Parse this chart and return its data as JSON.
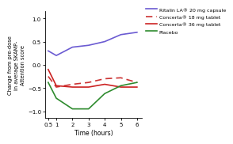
{
  "x": [
    0.5,
    1.0,
    2.0,
    3.0,
    4.0,
    5.0,
    6.0
  ],
  "ritalin": [
    0.3,
    0.2,
    0.38,
    0.42,
    0.5,
    0.65,
    0.7
  ],
  "concerta18": [
    -0.25,
    -0.48,
    -0.42,
    -0.38,
    -0.3,
    -0.28,
    -0.38
  ],
  "concerta36": [
    -0.1,
    -0.45,
    -0.48,
    -0.48,
    -0.42,
    -0.48,
    -0.48
  ],
  "placebo": [
    -0.38,
    -0.72,
    -0.95,
    -0.95,
    -0.62,
    -0.45,
    -0.38
  ],
  "ritalin_color": "#6B5BD2",
  "concerta18_color": "#CC3333",
  "concerta36_color": "#CC2222",
  "placebo_color": "#2E8B2E",
  "xlabel": "Time (hours)",
  "ylabel": "Change from pre-dose\nin average SKAMP-\nAttention score",
  "xlim": [
    0.3,
    6.3
  ],
  "ylim": [
    -1.15,
    1.15
  ],
  "xticks": [
    0.5,
    1,
    2,
    3,
    4,
    5,
    6
  ],
  "xticklabels": [
    "0.5",
    "1",
    "2",
    "3",
    "4",
    "5",
    "6"
  ],
  "yticks": [
    -1.0,
    -0.5,
    0.0,
    0.5,
    1.0
  ],
  "legend_labels": [
    "Ritalin LA® 20 mg capsule",
    "Concerta® 18 mg tablet",
    "Concerta® 36 mg tablet",
    "Placebo"
  ],
  "bg_color": "#ffffff"
}
